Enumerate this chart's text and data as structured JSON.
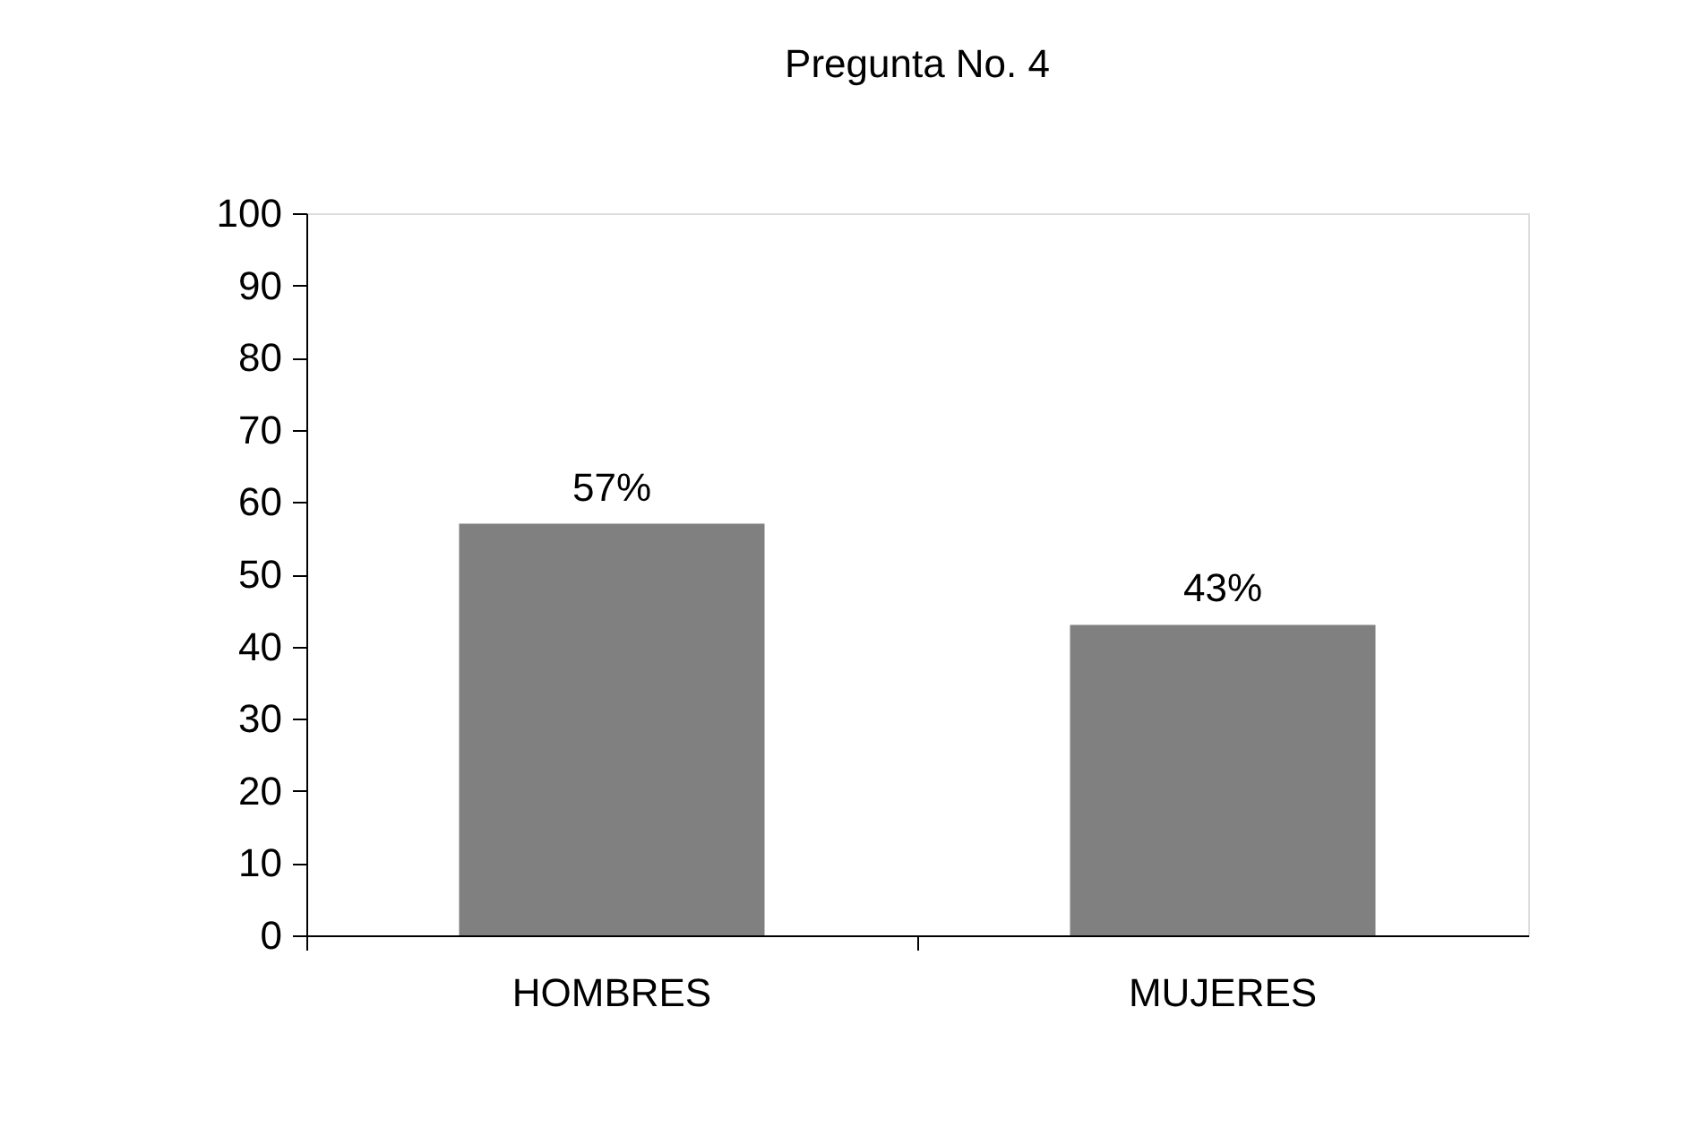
{
  "chart_data": {
    "type": "bar",
    "title": "Pregunta No. 4",
    "categories": [
      "HOMBRES",
      "MUJERES"
    ],
    "values": [
      57,
      43
    ],
    "value_labels": [
      "57%",
      "43%"
    ],
    "color": "#808080",
    "ylim": [
      0,
      100
    ],
    "yticks": [
      0,
      10,
      20,
      30,
      40,
      50,
      60,
      70,
      80,
      90,
      100
    ],
    "grid": false
  }
}
